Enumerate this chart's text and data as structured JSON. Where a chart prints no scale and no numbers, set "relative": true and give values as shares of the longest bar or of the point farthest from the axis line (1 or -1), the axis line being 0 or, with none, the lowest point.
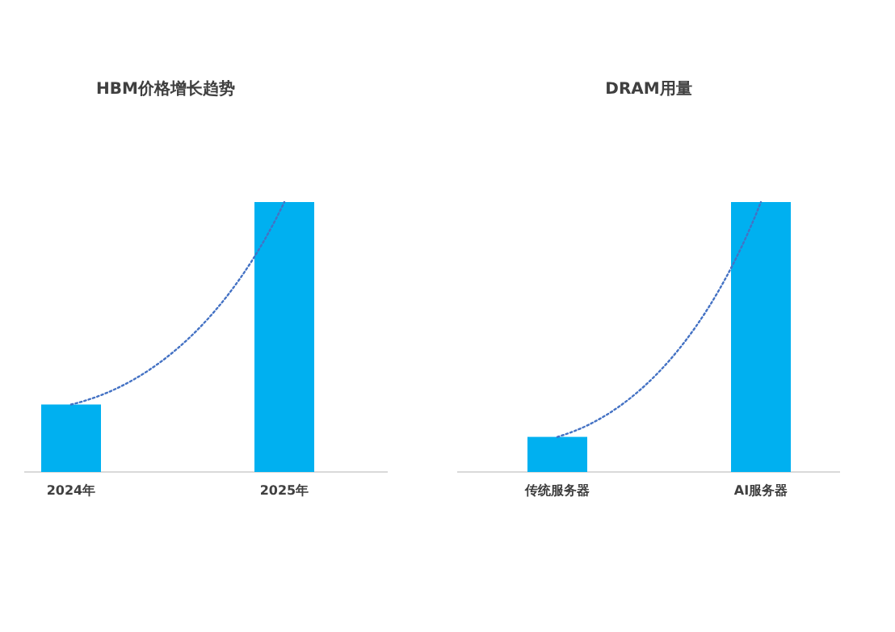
{
  "chart_data": [
    {
      "type": "bar",
      "title": "HBM价格增长趋势",
      "categories": [
        "2024年",
        "2025年"
      ],
      "relative": true,
      "series": [
        {
          "color": "#00b0f0",
          "values": [
            0.25,
            1
          ]
        },
        {
          "type": "line",
          "color": "#4472c4",
          "line_style": "dotted",
          "values": [
            0.25,
            1
          ]
        }
      ]
    },
    {
      "type": "bar",
      "title": "DRAM用量",
      "categories": [
        "传统服务器",
        "AI服务器"
      ],
      "relative": true,
      "series": [
        {
          "color": "#00b0f0",
          "values": [
            0.13,
            1
          ]
        },
        {
          "type": "line",
          "color": "#4472c4",
          "line_style": "dotted",
          "values": [
            0.13,
            1
          ]
        }
      ]
    }
  ]
}
